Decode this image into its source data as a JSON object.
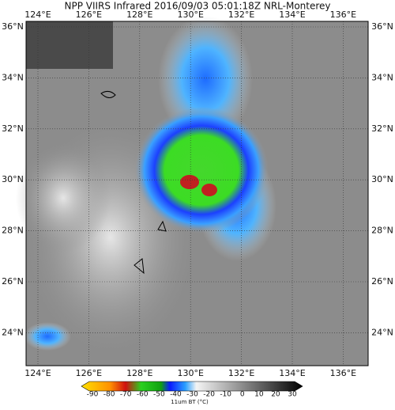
{
  "title": "NPP VIIRS Infrared 2016/09/03 05:01:18Z NRL-Monterey",
  "lon_labels": [
    "124°E",
    "126°E",
    "128°E",
    "130°E",
    "132°E",
    "134°E",
    "136°E"
  ],
  "lat_labels": [
    "36°N",
    "34°N",
    "32°N",
    "30°N",
    "28°N",
    "26°N",
    "24°N"
  ],
  "colorbar": {
    "ticks": [
      -90,
      -80,
      -70,
      -60,
      -50,
      -40,
      -30,
      -20,
      -10,
      0,
      10,
      20,
      30
    ],
    "label": "11um BT (°C)"
  }
}
